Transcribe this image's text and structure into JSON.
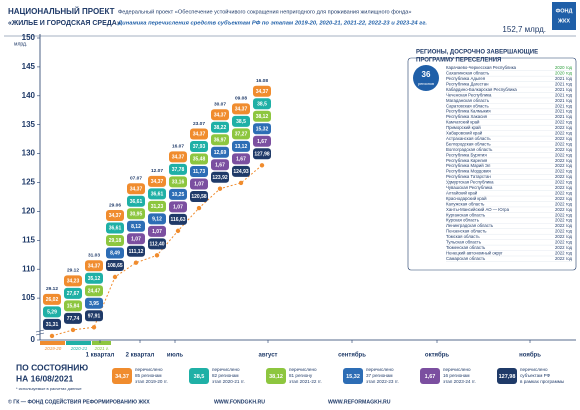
{
  "header": {
    "project": [
      "НАЦИОНАЛЬНЫЙ ПРОЕКТ",
      "«ЖИЛЬЕ И ГОРОДСКАЯ СРЕДА»"
    ],
    "federal_project": "Федеральный проект «Обеспечение устойчивого сокращения непригодного для проживания жилищного фонда»",
    "subtitle": "Динамика перечисления средств субъектам РФ по этапам 2019-20, 2020-21, 2021-22, 2022-23 и 2023-24 гг.",
    "total": "152,7 млрд.",
    "logo": [
      "ФОНД",
      "ЖКХ"
    ]
  },
  "chart_data": {
    "type": "stacked-pills",
    "y_unit": "млрд.",
    "ylim": [
      0,
      150
    ],
    "axis_break": [
      0,
      100
    ],
    "yticks": [
      0,
      105,
      110,
      115,
      120,
      125,
      130,
      135,
      140,
      145,
      150
    ],
    "x_labels": [
      "1 квартал",
      "2 квартал",
      "июль",
      "август",
      "сентябрь",
      "октябрь",
      "ноябрь"
    ],
    "stage_bands": [
      "2019-20",
      "2020-21",
      "2021 г."
    ],
    "stage_colors": [
      "#f08c2e",
      "#1fb0a6",
      "#8dc63f",
      "#2d6db5",
      "#7b4fa0"
    ],
    "total_color": "#1f3a68",
    "line_color": "#f08c2e",
    "columns": [
      {
        "date": "29.12",
        "segments": [
          "26,02",
          "5,29",
          null,
          null,
          null
        ],
        "total": 31.31,
        "total_label": "31,31"
      },
      {
        "date": "29.12",
        "segments": [
          "34,23",
          "27,67",
          "15,84",
          null,
          null
        ],
        "total": 77.74,
        "total_label": "77,74"
      },
      {
        "date": "31.03",
        "segments": [
          "34,37",
          "35,12",
          "24,47",
          "3,95",
          null
        ],
        "total": 97.91,
        "total_label": "97,91"
      },
      {
        "date": "29.06",
        "segments": [
          "34,37",
          "36,61",
          "29,18",
          "8,49",
          null
        ],
        "total": 108.65,
        "total_label": "108,65"
      },
      {
        "date": "07.07",
        "segments": [
          "34,37",
          "36,61",
          "30,95",
          "8,12",
          "1,07"
        ],
        "total": 111.12,
        "total_label": "111,12"
      },
      {
        "date": "12.07",
        "segments": [
          "34,37",
          "36,61",
          "31,23",
          "9,12",
          "1,07"
        ],
        "total": 112.4,
        "total_label": "112,40"
      },
      {
        "date": "16.07",
        "segments": [
          "34,37",
          "37,78",
          "33,16",
          "10,25",
          "1,07"
        ],
        "total": 116.63,
        "total_label": "116,63"
      },
      {
        "date": "23.07",
        "segments": [
          "34,37",
          "37,93",
          "35,48",
          "11,73",
          "1,07"
        ],
        "total": 120.58,
        "total_label": "120,58"
      },
      {
        "date": "30.07",
        "segments": [
          "34,37",
          "38,22",
          "36,97",
          "12,69",
          "1,67"
        ],
        "total": 123.92,
        "total_label": "123,92"
      },
      {
        "date": "09.08",
        "segments": [
          "34,37",
          "38,5",
          "37,27",
          "13,12",
          "1,67"
        ],
        "total": 124.93,
        "total_label": "124,93"
      },
      {
        "date": "16.08",
        "segments": [
          "34,37",
          "38,5",
          "38,12",
          "15,32",
          "1,67"
        ],
        "total": 127.98,
        "total_label": "127,98"
      }
    ]
  },
  "regions": {
    "title": [
      "РЕГИОНЫ, ДОСРОЧНО ЗАВЕРШАЮЩИЕ",
      "ПРОГРАММУ ПЕРЕСЕЛЕНИЯ"
    ],
    "count": "36",
    "count_label": "регионов",
    "items": [
      {
        "name": "Карачаево-Черкесская Республика",
        "year": "2020 год"
      },
      {
        "name": "Сахалинская область",
        "year": "2020 год"
      },
      {
        "name": "Республика Адыгея",
        "year": "2021 год"
      },
      {
        "name": "Республика Дагестан",
        "year": "2021 год"
      },
      {
        "name": "Кабардино-Балкарская Республика",
        "year": "2021 год"
      },
      {
        "name": "Чеченская Республика",
        "year": "2021 год"
      },
      {
        "name": "Магаданская область",
        "year": "2021 год"
      },
      {
        "name": "Саратовская область",
        "year": "2021 год"
      },
      {
        "name": "Республика Калмыкия",
        "year": "2021 год"
      },
      {
        "name": "Республика Хакасия",
        "year": "2021 год"
      },
      {
        "name": "Камчатский край",
        "year": "2022 год"
      },
      {
        "name": "Приморский край",
        "year": "2022 год"
      },
      {
        "name": "Хабаровский край",
        "year": "2022 год"
      },
      {
        "name": "Астраханская область",
        "year": "2022 год"
      },
      {
        "name": "Белгородская область",
        "year": "2022 год"
      },
      {
        "name": "Волгоградская область",
        "year": "2022 год"
      },
      {
        "name": "Республика Бурятия",
        "year": "2022 год"
      },
      {
        "name": "Республика Карелия",
        "year": "2022 год"
      },
      {
        "name": "Республика Марий Эл",
        "year": "2022 год"
      },
      {
        "name": "Республика Мордовия",
        "year": "2022 год"
      },
      {
        "name": "Республика Татарстан",
        "year": "2022 год"
      },
      {
        "name": "Удмуртская Республика",
        "year": "2022 год"
      },
      {
        "name": "Чувашская Республика",
        "year": "2022 год"
      },
      {
        "name": "Алтайский край",
        "year": "2022 год"
      },
      {
        "name": "Краснодарский край",
        "year": "2022 год"
      },
      {
        "name": "Калужская область",
        "year": "2022 год"
      },
      {
        "name": "Ханты-Мансийский АО — Югра",
        "year": "2022 год"
      },
      {
        "name": "Курганская область",
        "year": "2022 год"
      },
      {
        "name": "Курская область",
        "year": "2022 год"
      },
      {
        "name": "Ленинградская область",
        "year": "2022 год"
      },
      {
        "name": "Пензенская область",
        "year": "2022 год"
      },
      {
        "name": "Томская область",
        "year": "2022 год"
      },
      {
        "name": "Тульская область",
        "year": "2022 год"
      },
      {
        "name": "Тюменская область",
        "year": "2022 год"
      },
      {
        "name": "Ненецкий автономный округ",
        "year": "2022 год"
      },
      {
        "name": "Самарская область",
        "year": "2022 год"
      }
    ]
  },
  "legend": {
    "status": [
      "ПО СОСТОЯНИЮ",
      "НА 16/08/2021"
    ],
    "note": "* используемые в расчетах данные",
    "items": [
      {
        "value": "34,37",
        "lines": [
          "перечислено",
          "85 регионам",
          "этап 2019-20 гг."
        ]
      },
      {
        "value": "38,5",
        "lines": [
          "перечислено",
          "82 регионам",
          "этап 2020-21 гг."
        ]
      },
      {
        "value": "38,12",
        "lines": [
          "перечислено",
          "81 региону",
          "этап 2021-22 гг."
        ]
      },
      {
        "value": "15,32",
        "lines": [
          "перечислено",
          "37 регионам",
          "этап 2022-23 гг."
        ]
      },
      {
        "value": "1,67",
        "lines": [
          "перечислено",
          "16 регионам",
          "этап 2023-24 гг."
        ]
      },
      {
        "value": "127,98",
        "lines": [
          "перечислено",
          "субъектам РФ",
          "в рамках программы"
        ]
      }
    ]
  },
  "footer": [
    "© ГК — ФОНД СОДЕЙСТВИЯ РЕФОРМИРОВАНИЮ ЖКХ",
    "WWW.FONDGKH.RU",
    "WWW.REFORMAGKH.RU"
  ]
}
